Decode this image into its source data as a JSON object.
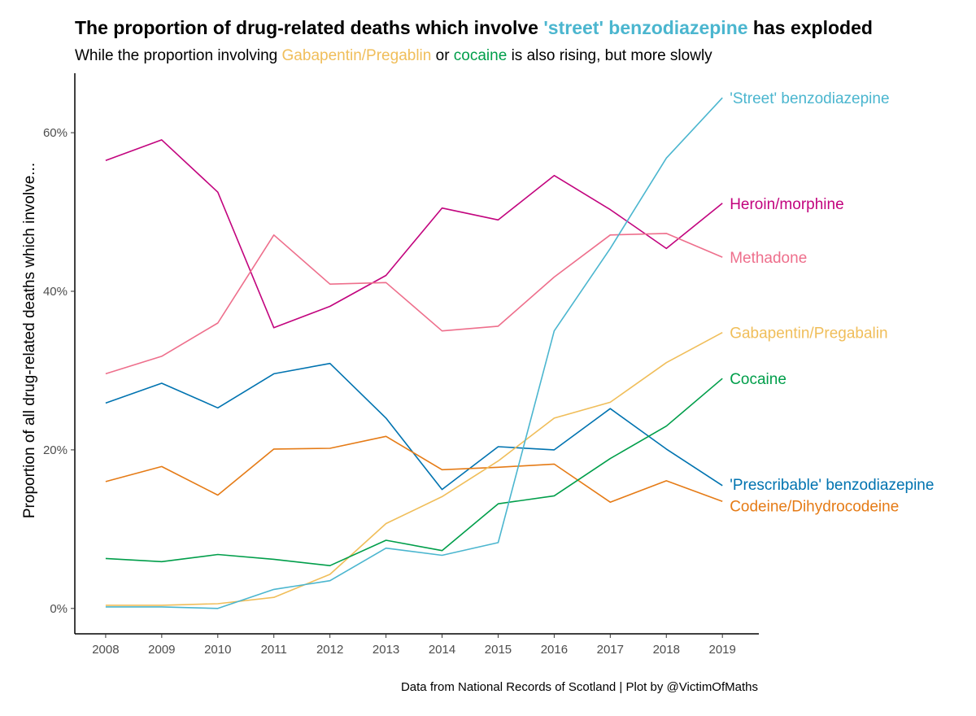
{
  "title": {
    "part1": "The proportion of drug-related deaths which involve ",
    "highlight": "'street' benzodiazepine",
    "part2": " has exploded",
    "highlight_color": "#4BB6CF"
  },
  "subtitle": {
    "part1": "While the proportion involving ",
    "hl1": "Gabapentin/Pregablin",
    "hl1_color": "#F0BE5A",
    "part2": " or ",
    "hl2": "cocaine",
    "hl2_color": "#009E4A",
    "part3": " is also rising, but more slowly"
  },
  "caption": "Data from National Records of Scotland | Plot by @VictimOfMaths",
  "chart_data": {
    "type": "line",
    "title": "The proportion of drug-related deaths which involve 'street' benzodiazepine has exploded",
    "subtitle": "While the proportion involving Gabapentin/Pregablin or cocaine is also rising, but more slowly",
    "xlabel": "",
    "ylabel": "Proportion of all drug-related deaths which involve...",
    "x": [
      2008,
      2009,
      2010,
      2011,
      2012,
      2013,
      2014,
      2015,
      2016,
      2017,
      2018,
      2019
    ],
    "xlim": [
      2007.45,
      2019.65
    ],
    "ylim": [
      -0.032,
      0.675
    ],
    "y_ticks": [
      0,
      0.2,
      0.4,
      0.6
    ],
    "y_tick_labels": [
      "0%",
      "20%",
      "40%",
      "60%"
    ],
    "grid": false,
    "legend": "direct labels at line ends",
    "series": [
      {
        "name": "Heroin/morphine",
        "color": "#C2047E",
        "values": [
          0.565,
          0.591,
          0.525,
          0.354,
          0.381,
          0.42,
          0.505,
          0.49,
          0.546,
          0.503,
          0.454,
          0.511
        ]
      },
      {
        "name": "Methadone",
        "color": "#EE6F8C",
        "values": [
          0.296,
          0.318,
          0.36,
          0.471,
          0.409,
          0.411,
          0.35,
          0.356,
          0.418,
          0.471,
          0.473,
          0.443
        ]
      },
      {
        "name": "'Prescribable' benzodiazepine",
        "color": "#0073B0",
        "values": [
          0.259,
          0.284,
          0.253,
          0.296,
          0.309,
          0.24,
          0.15,
          0.204,
          0.2,
          0.252,
          0.201,
          0.155
        ]
      },
      {
        "name": "Codeine/Dihydrocodeine",
        "color": "#E57B16",
        "values": [
          0.16,
          0.179,
          0.143,
          0.201,
          0.202,
          0.217,
          0.175,
          0.178,
          0.182,
          0.134,
          0.161,
          0.135
        ]
      },
      {
        "name": "Gabapentin/Pregabalin",
        "color": "#F0BE5A",
        "values": [
          0.004,
          0.004,
          0.006,
          0.014,
          0.043,
          0.107,
          0.141,
          0.186,
          0.24,
          0.26,
          0.31,
          0.348
        ]
      },
      {
        "name": "Cocaine",
        "color": "#009E4A",
        "values": [
          0.063,
          0.059,
          0.068,
          0.062,
          0.054,
          0.086,
          0.073,
          0.132,
          0.142,
          0.189,
          0.23,
          0.29
        ]
      },
      {
        "name": "'Street' benzodiazepine",
        "color": "#4BB6CF",
        "values": [
          0.002,
          0.002,
          0.0,
          0.024,
          0.035,
          0.076,
          0.067,
          0.083,
          0.35,
          0.454,
          0.568,
          0.644
        ]
      }
    ]
  }
}
